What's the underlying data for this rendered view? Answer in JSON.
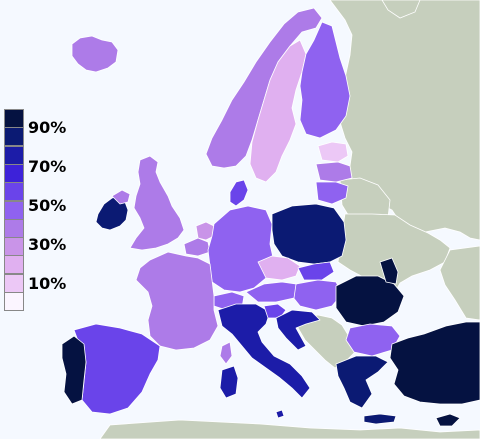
{
  "colors": {
    "sea": "#f5f9ff",
    "land_nodata": "#c6cfbd",
    "border": "#ffffff",
    "scale": [
      "#fbf5ff",
      "#ecc8f6",
      "#e0b0f0",
      "#c994e8",
      "#ad7be8",
      "#8f62f0",
      "#6a44ea",
      "#3d22d9",
      "#1c1ca8",
      "#0b1a73",
      "#051241"
    ]
  },
  "legend": {
    "labels": [
      "90%",
      "70%",
      "50%",
      "30%",
      "10%"
    ]
  },
  "regions": [
    {
      "name": "iceland",
      "level": 4
    },
    {
      "name": "ireland",
      "level": 9
    },
    {
      "name": "northern-ireland",
      "level": 4
    },
    {
      "name": "great-britain",
      "level": 4
    },
    {
      "name": "norway",
      "level": 4
    },
    {
      "name": "sweden",
      "level": 2
    },
    {
      "name": "finland",
      "level": 5
    },
    {
      "name": "estonia",
      "level": 1
    },
    {
      "name": "latvia",
      "level": 4
    },
    {
      "name": "lithuania",
      "level": 5
    },
    {
      "name": "denmark",
      "level": 6
    },
    {
      "name": "netherlands",
      "level": 3
    },
    {
      "name": "belgium",
      "level": 4
    },
    {
      "name": "germany",
      "level": 5
    },
    {
      "name": "poland",
      "level": 9
    },
    {
      "name": "czech",
      "level": 2
    },
    {
      "name": "slovakia",
      "level": 6
    },
    {
      "name": "hungary",
      "level": 5
    },
    {
      "name": "austria",
      "level": 5
    },
    {
      "name": "switzerland",
      "level": 5
    },
    {
      "name": "france",
      "level": 4
    },
    {
      "name": "spain",
      "level": 6
    },
    {
      "name": "portugal",
      "level": 10
    },
    {
      "name": "italy",
      "level": 8
    },
    {
      "name": "sardinia",
      "level": 8
    },
    {
      "name": "corsica",
      "level": 4
    },
    {
      "name": "slovenia",
      "level": 6
    },
    {
      "name": "croatia",
      "level": 8
    },
    {
      "name": "romania",
      "level": 10
    },
    {
      "name": "moldova",
      "level": 10
    },
    {
      "name": "bulgaria",
      "level": 5
    },
    {
      "name": "greece",
      "level": 9
    },
    {
      "name": "crete",
      "level": 9
    },
    {
      "name": "turkey",
      "level": 10
    },
    {
      "name": "cyprus",
      "level": 10
    },
    {
      "name": "malta",
      "level": 8
    }
  ]
}
